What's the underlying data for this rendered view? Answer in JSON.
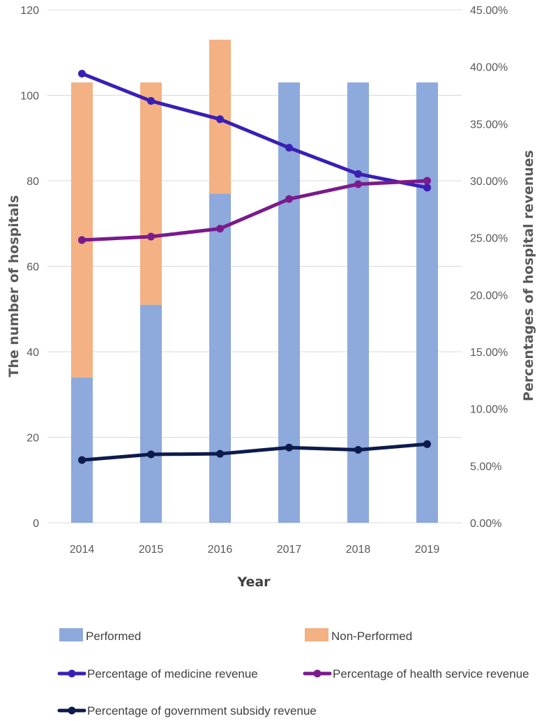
{
  "chart_data": {
    "type": "bar+line",
    "categories": [
      "2014",
      "2015",
      "2016",
      "2017",
      "2018",
      "2019"
    ],
    "xlabel": "Year",
    "ylabel_left": "The number of hospitals",
    "ylabel_right": "Percentages of hospital revenues",
    "ylim_left": [
      0,
      120
    ],
    "ylim_right": [
      0,
      45
    ],
    "yticks_left": [
      "0",
      "20",
      "40",
      "60",
      "80",
      "100",
      "120"
    ],
    "yticks_right": [
      "0.00%",
      "5.00%",
      "10.00%",
      "15.00%",
      "20.00%",
      "25.00%",
      "30.00%",
      "35.00%",
      "40.00%",
      "45.00%"
    ],
    "bar_series": [
      {
        "name": "Performed",
        "color": "#8EA9DB",
        "values": [
          34,
          51,
          77,
          103,
          103,
          103
        ]
      },
      {
        "name": "Non-Performed",
        "color": "#F4B183",
        "values": [
          69,
          52,
          36,
          0,
          0,
          0
        ]
      }
    ],
    "line_series": [
      {
        "name": "Percentage of medicine revenue",
        "color": "#3A1FB5",
        "values": [
          39.4,
          37.0,
          35.4,
          32.9,
          30.6,
          29.4
        ]
      },
      {
        "name": "Percentage of health service revenue",
        "color": "#7B1A8C",
        "values": [
          24.8,
          25.1,
          25.8,
          28.4,
          29.7,
          30.0
        ]
      },
      {
        "name": "Percentage of government subsidy revenue",
        "color": "#0D1B4C",
        "values": [
          5.5,
          6.0,
          6.05,
          6.6,
          6.4,
          6.9
        ]
      }
    ],
    "grid": true,
    "legend_position": "bottom"
  }
}
